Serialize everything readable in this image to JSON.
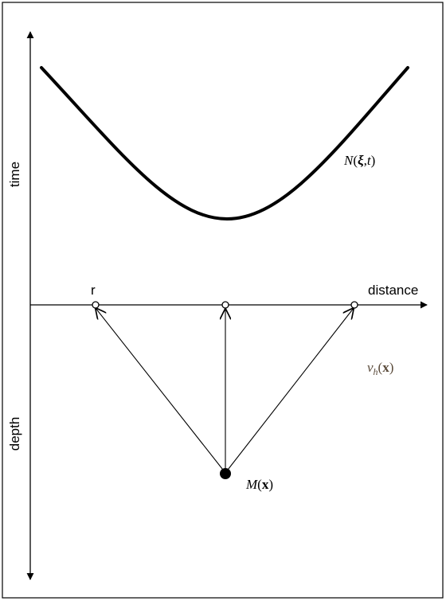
{
  "labels": {
    "time_axis": "time",
    "depth_axis": "depth",
    "distance_axis": "distance",
    "receiver": "r"
  },
  "curve_label": {
    "symbol": "N",
    "open": "(",
    "xi": "ξ",
    "comma": ",",
    "t": "t",
    "close": ")"
  },
  "velocity_label": {
    "symbol": "v",
    "subscript": "h",
    "open": "(",
    "x": "x",
    "close": ")"
  },
  "source_label": {
    "symbol": "M",
    "open": "(",
    "x": "x",
    "close": ")"
  },
  "colors": {
    "ink": "#000000",
    "background": "#ffffff",
    "velocity_label_color": "#5a4a3a"
  }
}
